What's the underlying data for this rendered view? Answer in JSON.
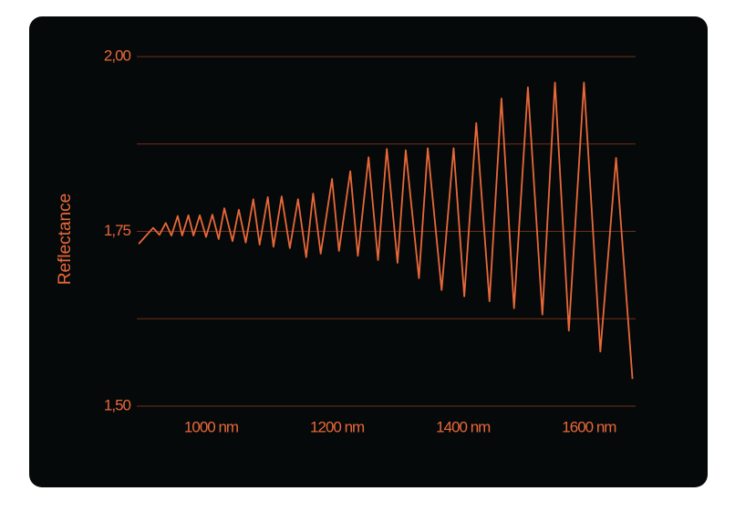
{
  "chart_data": {
    "type": "line",
    "y_label": "Reflectance",
    "x": [
      885,
      908,
      918,
      928,
      937,
      947,
      954,
      964,
      972,
      982,
      992,
      1002,
      1012,
      1021,
      1034,
      1044,
      1055,
      1067,
      1077,
      1090,
      1099,
      1112,
      1125,
      1138,
      1151,
      1162,
      1174,
      1192,
      1203,
      1221,
      1233,
      1250,
      1265,
      1279,
      1296,
      1309,
      1330,
      1344,
      1366,
      1385,
      1402,
      1421,
      1442,
      1461,
      1481,
      1503,
      1526,
      1546,
      1568,
      1592,
      1618,
      1643,
      1669
    ],
    "values": [
      1.732,
      1.755,
      1.745,
      1.762,
      1.744,
      1.772,
      1.744,
      1.773,
      1.744,
      1.773,
      1.742,
      1.774,
      1.739,
      1.783,
      1.736,
      1.781,
      1.734,
      1.796,
      1.731,
      1.799,
      1.728,
      1.8,
      1.726,
      1.796,
      1.713,
      1.804,
      1.718,
      1.825,
      1.722,
      1.836,
      1.715,
      1.856,
      1.709,
      1.868,
      1.705,
      1.866,
      1.683,
      1.869,
      1.666,
      1.869,
      1.657,
      1.905,
      1.65,
      1.94,
      1.64,
      1.956,
      1.631,
      1.963,
      1.608,
      1.963,
      1.578,
      1.855,
      1.539
    ],
    "color": "#e8683a",
    "xlim": [
      882,
      1674
    ],
    "xticks": [
      {
        "value": 1000,
        "label": "1000 nm"
      },
      {
        "value": 1200,
        "label": "1200 nm"
      },
      {
        "value": 1400,
        "label": "1400 nm"
      },
      {
        "value": 1600,
        "label": "1600 nm"
      }
    ],
    "ylim": [
      1.5,
      2.0
    ],
    "yticks": [
      {
        "value": 1.5,
        "label": "1,50"
      },
      {
        "value": 1.75,
        "label": "1,75"
      },
      {
        "value": 2.0,
        "label": "2,00"
      }
    ],
    "ygrid": [
      1.625,
      1.875
    ],
    "grid": true,
    "grid_color": "#6e2f1a"
  }
}
